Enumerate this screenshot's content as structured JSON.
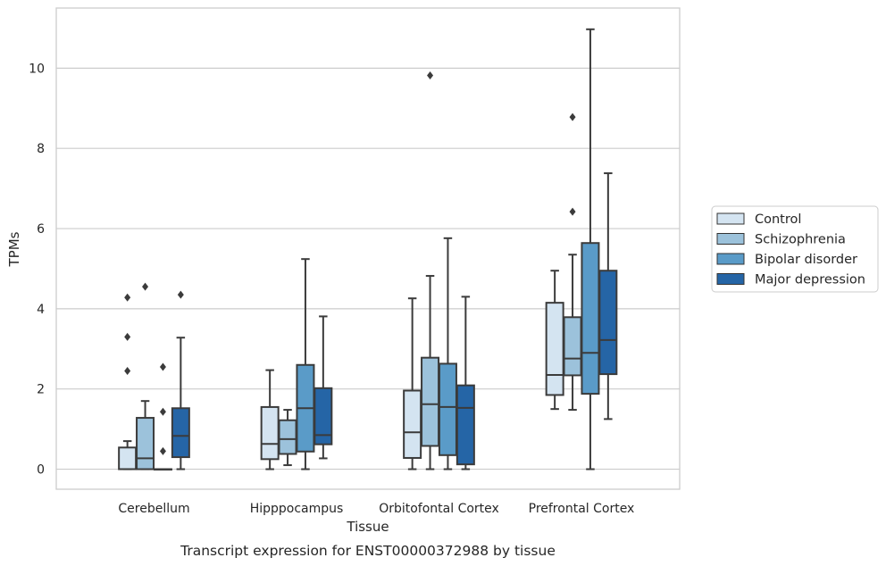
{
  "caption": "Transcript expression for ENST00000372988 by tissue",
  "chart_data": {
    "type": "box",
    "xlabel": "Tissue",
    "ylabel": "TPMs",
    "ylim": [
      -0.5,
      11.5
    ],
    "yticks": [
      0,
      2,
      4,
      6,
      8,
      10
    ],
    "grid": "horizontal",
    "legend_position": "right",
    "categories": [
      "Cerebellum",
      "Hipppocampus",
      "Orbitofontal Cortex",
      "Prefrontal Cortex"
    ],
    "series": [
      {
        "name": "Control",
        "color": "#d4e4f1",
        "boxes": [
          {
            "whislo": 0,
            "q1": 0,
            "med": 0,
            "q3": 0.54,
            "whishi": 0.7,
            "fliers": [
              2.45,
              3.3,
              4.28
            ]
          },
          {
            "whislo": 0,
            "q1": 0.25,
            "med": 0.63,
            "q3": 1.55,
            "whishi": 2.47,
            "fliers": []
          },
          {
            "whislo": 0,
            "q1": 0.28,
            "med": 0.92,
            "q3": 1.96,
            "whishi": 4.26,
            "fliers": []
          },
          {
            "whislo": 1.5,
            "q1": 1.85,
            "med": 2.35,
            "q3": 4.15,
            "whishi": 4.95,
            "fliers": []
          }
        ]
      },
      {
        "name": "Schizophrenia",
        "color": "#9cc2db",
        "boxes": [
          {
            "whislo": 0,
            "q1": 0,
            "med": 0.27,
            "q3": 1.28,
            "whishi": 1.7,
            "fliers": [
              4.55
            ]
          },
          {
            "whislo": 0.1,
            "q1": 0.38,
            "med": 0.75,
            "q3": 1.22,
            "whishi": 1.48,
            "fliers": []
          },
          {
            "whislo": 0,
            "q1": 0.58,
            "med": 1.62,
            "q3": 2.78,
            "whishi": 4.82,
            "fliers": [
              9.82
            ]
          },
          {
            "whislo": 1.48,
            "q1": 2.34,
            "med": 2.76,
            "q3": 3.79,
            "whishi": 5.35,
            "fliers": [
              6.42,
              8.78
            ]
          }
        ]
      },
      {
        "name": "Bipolar disorder",
        "color": "#5a9bc8",
        "boxes": [
          {
            "whislo": 0,
            "q1": 0,
            "med": 0,
            "q3": 0,
            "whishi": 0,
            "fliers": [
              0.45,
              1.43,
              2.55
            ]
          },
          {
            "whislo": 0,
            "q1": 0.44,
            "med": 1.52,
            "q3": 2.6,
            "whishi": 5.24,
            "fliers": []
          },
          {
            "whislo": 0,
            "q1": 0.35,
            "med": 1.55,
            "q3": 2.63,
            "whishi": 5.76,
            "fliers": []
          },
          {
            "whislo": 0,
            "q1": 1.88,
            "med": 2.9,
            "q3": 5.64,
            "whishi": 10.97,
            "fliers": []
          }
        ]
      },
      {
        "name": "Major depression",
        "color": "#2565a6",
        "boxes": [
          {
            "whislo": 0,
            "q1": 0.3,
            "med": 0.83,
            "q3": 1.52,
            "whishi": 3.28,
            "fliers": [
              4.35
            ]
          },
          {
            "whislo": 0.27,
            "q1": 0.62,
            "med": 0.85,
            "q3": 2.02,
            "whishi": 3.81,
            "fliers": []
          },
          {
            "whislo": 0,
            "q1": 0.12,
            "med": 1.53,
            "q3": 2.09,
            "whishi": 4.3,
            "fliers": []
          },
          {
            "whislo": 1.25,
            "q1": 2.37,
            "med": 3.22,
            "q3": 4.95,
            "whishi": 7.38,
            "fliers": []
          }
        ]
      }
    ]
  }
}
